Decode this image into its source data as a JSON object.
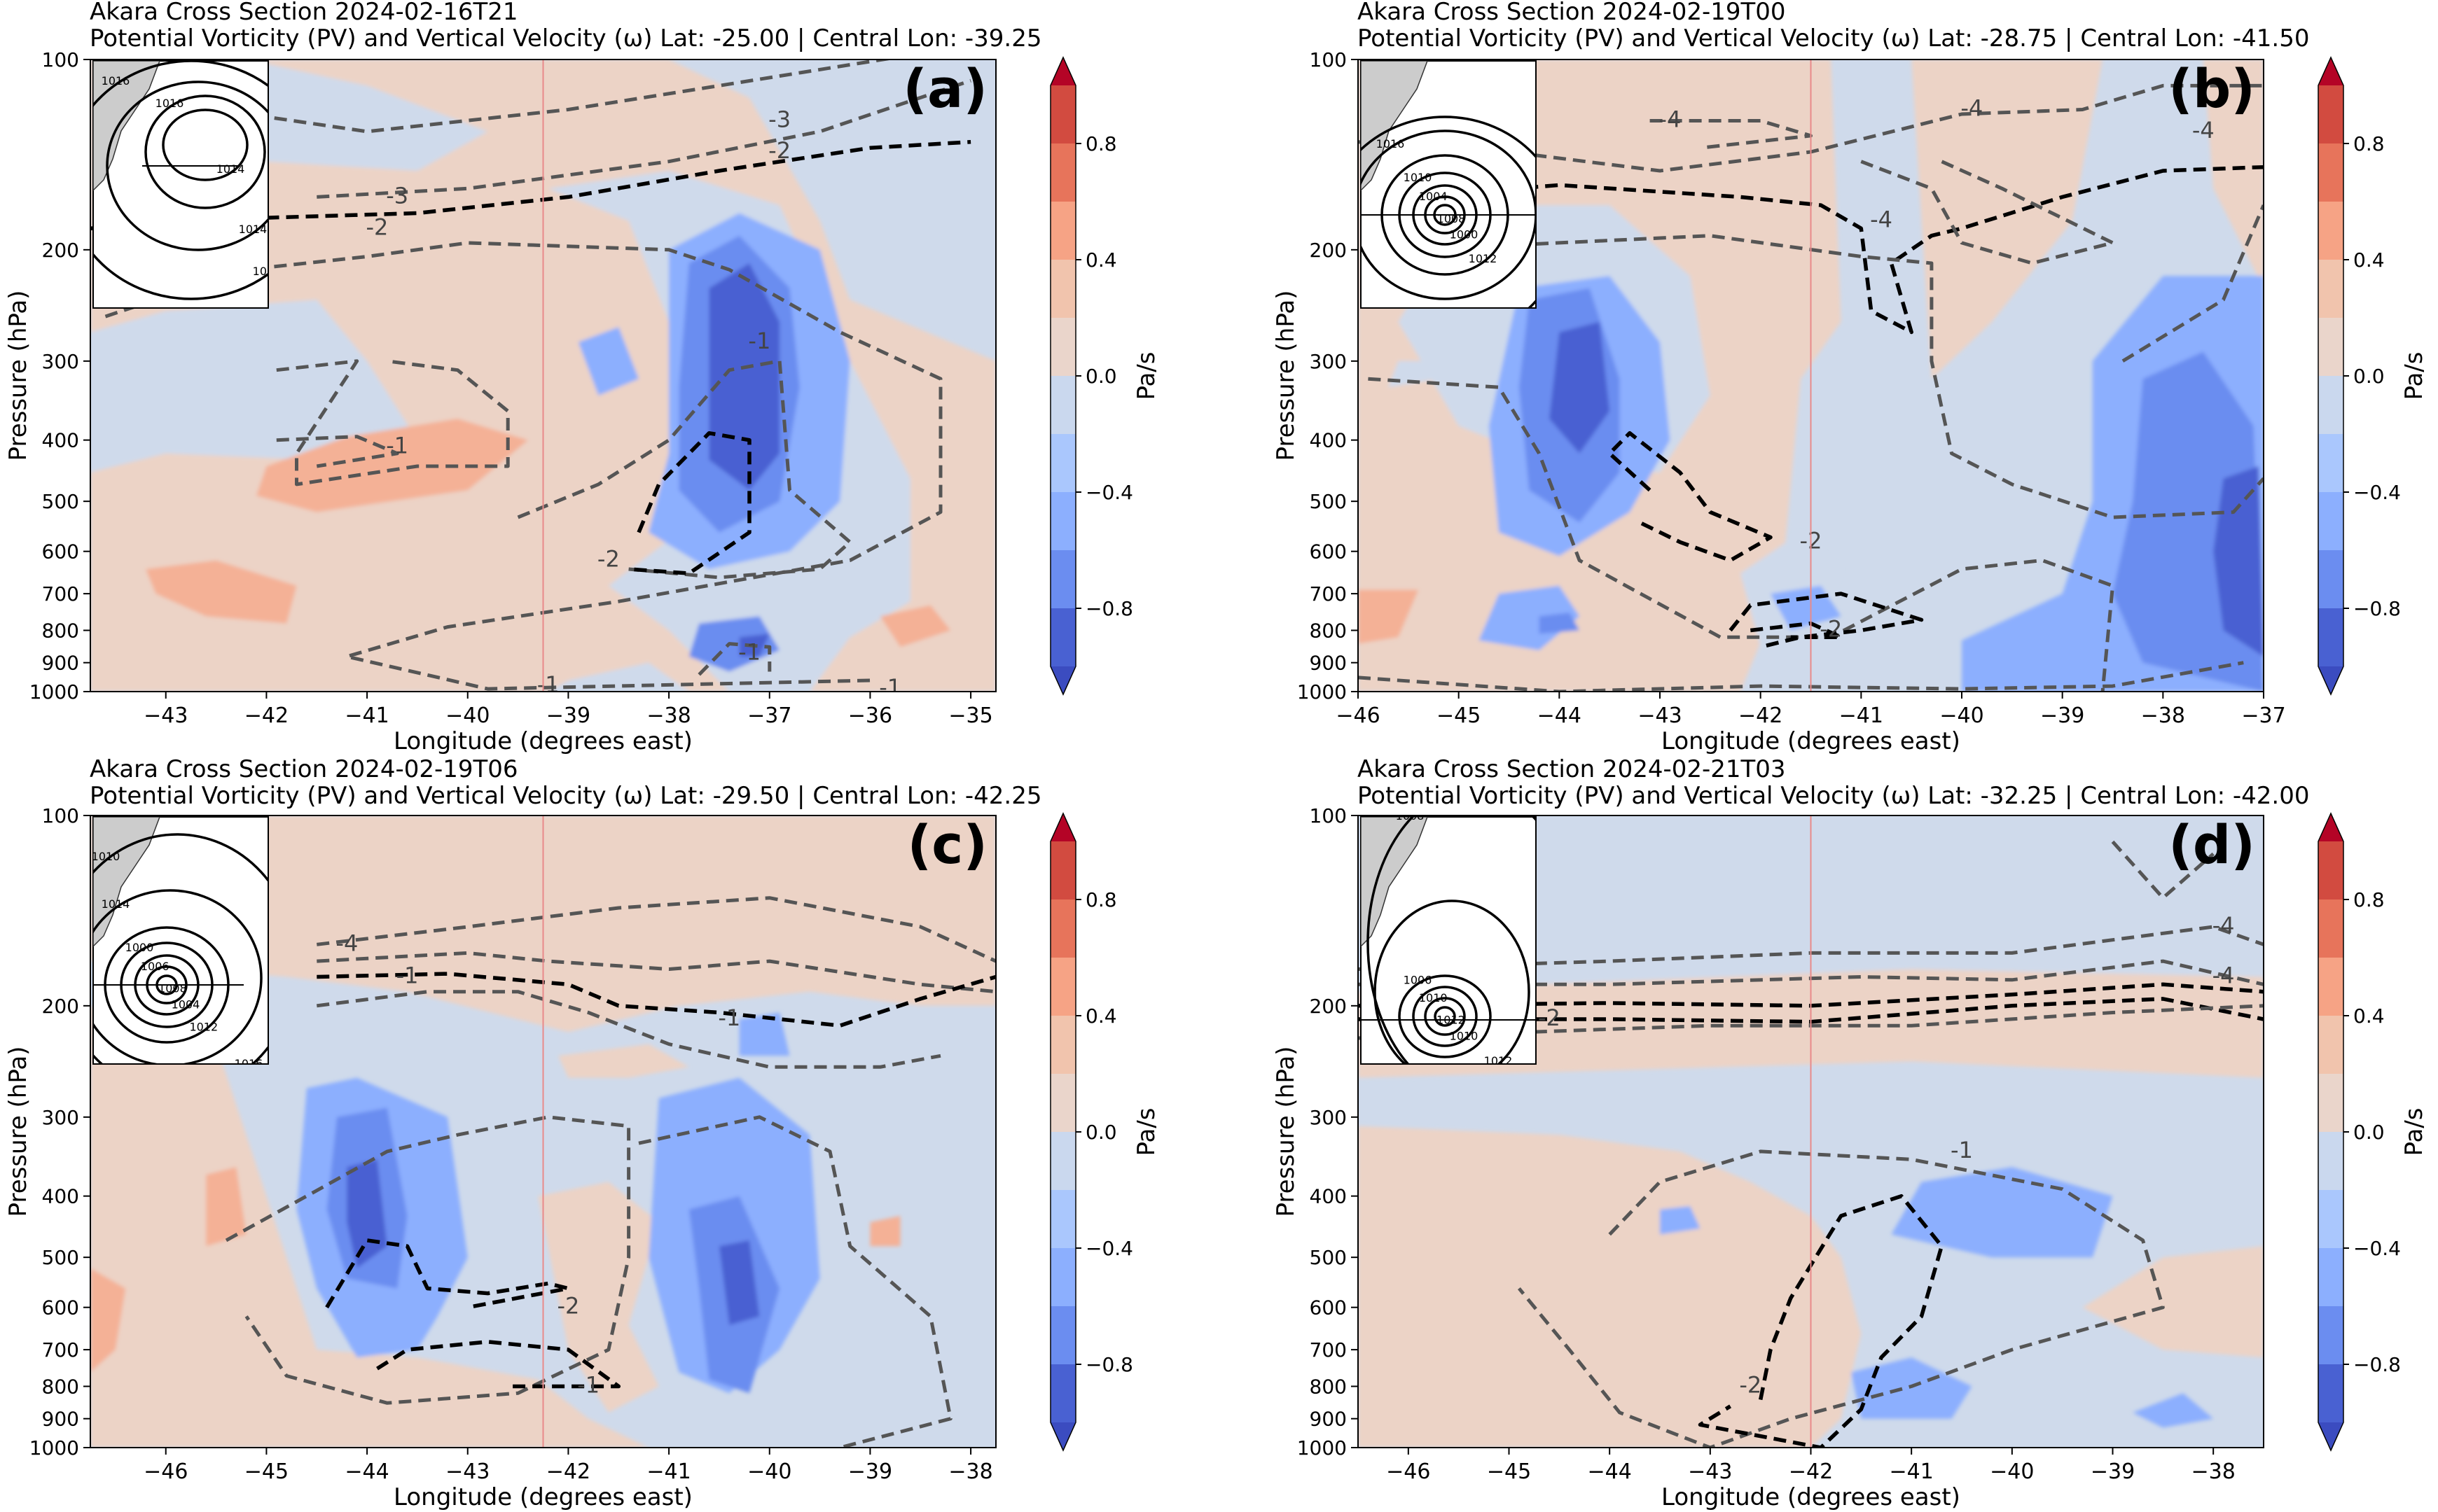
{
  "colorbar": {
    "label": "Pa/s",
    "ticks": [
      "0.8",
      "0.4",
      "0.0",
      "-0.4",
      "-0.8"
    ],
    "colors": [
      "#b40426",
      "#d24b40",
      "#e7745b",
      "#f6a385",
      "#f1c4ad",
      "#ead5cb",
      "#cad8ee",
      "#aac7fd",
      "#8caffe",
      "#6b8df0",
      "#4961d2",
      "#3b4cc0"
    ]
  },
  "chart_data": [
    {
      "type": "contour",
      "panel_label": "(a)",
      "title": "Akara Cross Section 2024-02-16T21",
      "subtitle": "Potential Vorticity (PV) and Vertical Velocity (ω) Lat: -25.00 | Central Lon: -39.25",
      "xlabel": "Longitude (degrees east)",
      "ylabel": "Pressure (hPa)",
      "xlim": [
        -43.75,
        -34.75
      ],
      "ylim": [
        1000,
        100
      ],
      "y_scale": "log",
      "x_ticks": [
        "-43",
        "-42",
        "-41",
        "-40",
        "-39",
        "-38",
        "-37",
        "-36",
        "-35"
      ],
      "y_ticks": [
        "100",
        "200",
        "300",
        "400",
        "500",
        "600",
        "700",
        "800",
        "900",
        "1000"
      ],
      "central_lon": -39.25,
      "pv_labels": [
        "-3",
        "-2",
        "-3",
        "-2",
        "-1",
        "-1",
        "-1",
        "-2",
        "-1",
        "-1",
        "-1"
      ],
      "inset_labels": [
        "1014",
        "1016",
        "1014",
        "1016",
        "1016"
      ]
    },
    {
      "type": "contour",
      "panel_label": "(b)",
      "title": "Akara Cross Section 2024-02-19T00",
      "subtitle": "Potential Vorticity (PV) and Vertical Velocity (ω) Lat: -28.75 | Central Lon: -41.50",
      "xlabel": "Longitude (degrees east)",
      "ylabel": "Pressure (hPa)",
      "xlim": [
        -46.0,
        -37.0
      ],
      "ylim": [
        1000,
        100
      ],
      "y_scale": "log",
      "x_ticks": [
        "-46",
        "-45",
        "-44",
        "-43",
        "-42",
        "-41",
        "-40",
        "-39",
        "-38",
        "-37"
      ],
      "y_ticks": [
        "100",
        "200",
        "300",
        "400",
        "500",
        "600",
        "700",
        "800",
        "900",
        "1000"
      ],
      "central_lon": -41.5,
      "pv_labels": [
        "-4",
        "-4",
        "-4",
        "-4",
        "-2",
        "-2"
      ],
      "inset_labels": [
        "1008",
        "1004",
        "1000",
        "1010",
        "1012",
        "1016",
        "1018"
      ]
    },
    {
      "type": "contour",
      "panel_label": "(c)",
      "title": "Akara Cross Section 2024-02-19T06",
      "subtitle": "Potential Vorticity (PV) and Vertical Velocity (ω) Lat: -29.50 | Central Lon: -42.25",
      "xlabel": "Longitude (degrees east)",
      "ylabel": "Pressure (hPa)",
      "xlim": [
        -46.75,
        -37.75
      ],
      "ylim": [
        1000,
        100
      ],
      "y_scale": "log",
      "x_ticks": [
        "-46",
        "-45",
        "-44",
        "-43",
        "-42",
        "-41",
        "-40",
        "-39",
        "-38"
      ],
      "y_ticks": [
        "100",
        "200",
        "300",
        "400",
        "500",
        "600",
        "700",
        "800",
        "900",
        "1000"
      ],
      "central_lon": -42.25,
      "pv_labels": [
        "-4",
        "-1",
        "-1",
        "-2",
        "-1"
      ],
      "inset_labels": [
        "1008",
        "1006",
        "1004",
        "1000",
        "1012",
        "1014",
        "1016",
        "1010"
      ]
    },
    {
      "type": "contour",
      "panel_label": "(d)",
      "title": "Akara Cross Section 2024-02-21T03",
      "subtitle": "Potential Vorticity (PV) and Vertical Velocity (ω) Lat: -32.25 | Central Lon: -42.00",
      "xlabel": "Longitude (degrees east)",
      "ylabel": "Pressure (hPa)",
      "xlim": [
        -46.5,
        -37.5
      ],
      "ylim": [
        1000,
        100
      ],
      "y_scale": "log",
      "x_ticks": [
        "-46",
        "-45",
        "-44",
        "-43",
        "-42",
        "-41",
        "-40",
        "-39",
        "-38"
      ],
      "y_ticks": [
        "100",
        "200",
        "300",
        "400",
        "500",
        "600",
        "700",
        "800",
        "900",
        "1000"
      ],
      "central_lon": -42.0,
      "pv_labels": [
        "-4",
        "-4",
        "-2",
        "-1",
        "-2"
      ],
      "inset_labels": [
        "1012",
        "1010",
        "1010",
        "1006",
        "1012",
        "1008"
      ]
    }
  ]
}
